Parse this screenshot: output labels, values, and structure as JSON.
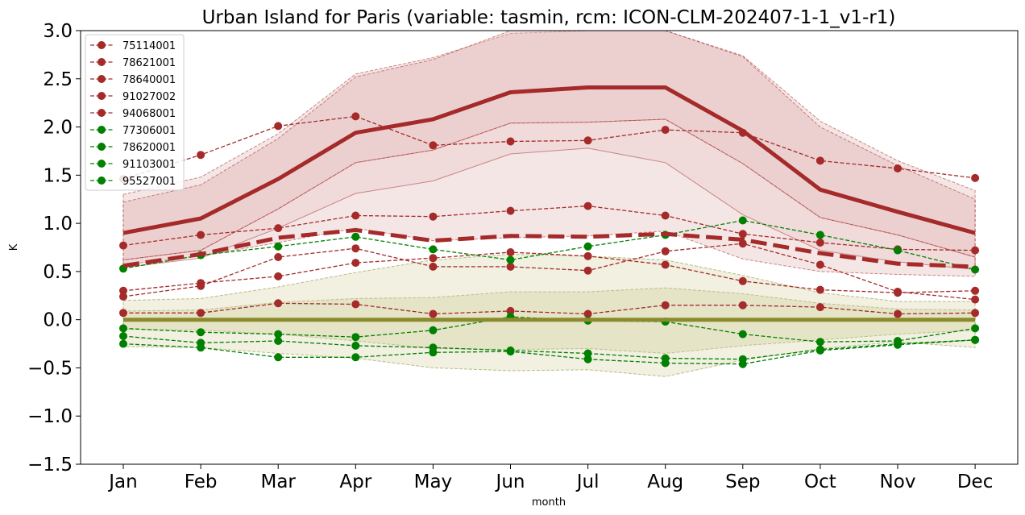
{
  "chart_data": {
    "type": "line",
    "title": "Urban Island for Paris (variable: tasmin, rcm: ICON-CLM-202407-1-1_v1-r1)",
    "xlabel": "month",
    "ylabel": "K",
    "ylim": [
      -1.5,
      3.0
    ],
    "yticks": [
      -1.5,
      -1.0,
      -0.5,
      0.0,
      0.5,
      1.0,
      1.5,
      2.0,
      2.5,
      3.0
    ],
    "ytick_labels": [
      "−1.5",
      "−1.0",
      "−0.5",
      "0.0",
      "0.5",
      "1.0",
      "1.5",
      "2.0",
      "2.5",
      "3.0"
    ],
    "categories": [
      "Jan",
      "Feb",
      "Mar",
      "Apr",
      "May",
      "Jun",
      "Jul",
      "Aug",
      "Sep",
      "Oct",
      "Nov",
      "Dec"
    ],
    "grid": false,
    "legend_position": "top-left",
    "colors": {
      "urban": "#a52a2a",
      "rural": "#008000",
      "rural_band": "#8b8b2e",
      "urban_band_fill": "#e2b6b6",
      "rural_band_fill": "#d8d4a8"
    },
    "series": [
      {
        "name": "75114001",
        "group": "urban",
        "values": [
          0.3,
          0.38,
          0.45,
          0.59,
          0.64,
          0.7,
          0.66,
          0.57,
          0.4,
          0.31,
          0.28,
          0.3
        ]
      },
      {
        "name": "78621001",
        "group": "urban",
        "values": [
          0.07,
          0.07,
          0.17,
          0.16,
          0.06,
          0.09,
          0.06,
          0.15,
          0.15,
          0.13,
          0.06,
          0.07
        ]
      },
      {
        "name": "78640001",
        "group": "urban",
        "values": [
          0.24,
          0.35,
          0.65,
          0.74,
          0.55,
          0.55,
          0.51,
          0.71,
          0.79,
          0.57,
          0.29,
          0.21
        ]
      },
      {
        "name": "91027002",
        "group": "urban",
        "values": [
          0.77,
          0.88,
          0.95,
          1.08,
          1.07,
          1.13,
          1.18,
          1.08,
          0.89,
          0.8,
          0.73,
          0.72
        ]
      },
      {
        "name": "94068001",
        "group": "urban",
        "values": [
          1.46,
          1.71,
          2.01,
          2.11,
          1.81,
          1.85,
          1.86,
          1.97,
          1.94,
          1.65,
          1.57,
          1.47
        ]
      },
      {
        "name": "77306001",
        "group": "rural",
        "values": [
          0.53,
          0.67,
          0.76,
          0.86,
          0.73,
          0.62,
          0.76,
          0.88,
          1.03,
          0.88,
          0.72,
          0.52
        ]
      },
      {
        "name": "78620001",
        "group": "rural",
        "values": [
          -0.09,
          -0.13,
          -0.15,
          -0.18,
          -0.11,
          0.03,
          -0.01,
          -0.02,
          -0.15,
          -0.23,
          -0.22,
          -0.09
        ]
      },
      {
        "name": "91103001",
        "group": "rural",
        "values": [
          -0.17,
          -0.24,
          -0.22,
          -0.27,
          -0.29,
          -0.32,
          -0.35,
          -0.4,
          -0.41,
          -0.31,
          -0.25,
          -0.21
        ]
      },
      {
        "name": "95527001",
        "group": "rural",
        "values": [
          -0.25,
          -0.29,
          -0.39,
          -0.39,
          -0.34,
          -0.33,
          -0.41,
          -0.45,
          -0.46,
          -0.32,
          -0.26,
          -0.21
        ]
      }
    ],
    "urban_mean": [
      0.9,
      1.05,
      1.46,
      1.94,
      2.08,
      2.36,
      2.41,
      2.41,
      1.96,
      1.35,
      1.12,
      0.9
    ],
    "station_mean": [
      0.56,
      0.68,
      0.85,
      0.93,
      0.82,
      0.87,
      0.86,
      0.89,
      0.83,
      0.69,
      0.58,
      0.55
    ],
    "rural_mean": [
      0,
      0,
      0,
      0,
      0,
      0,
      0,
      0,
      0,
      0,
      0,
      0
    ],
    "urban_band_outer": {
      "upper": [
        1.3,
        1.48,
        1.93,
        2.55,
        2.72,
        2.97,
        3.0,
        3.0,
        2.74,
        2.06,
        1.65,
        1.34
      ],
      "lower": [
        0.57,
        0.66,
        0.8,
        0.95,
        0.82,
        0.85,
        0.87,
        0.92,
        0.63,
        0.5,
        0.47,
        0.45
      ]
    },
    "urban_band_inner": {
      "upper": [
        1.22,
        1.4,
        1.88,
        2.52,
        2.7,
        3.0,
        3.0,
        3.0,
        2.73,
        2.0,
        1.6,
        1.25
      ],
      "lower": [
        0.62,
        0.72,
        1.15,
        1.63,
        1.76,
        2.04,
        2.05,
        2.08,
        1.62,
        1.06,
        0.88,
        0.65
      ]
    },
    "urban_band_low": {
      "upper": [
        0.62,
        0.72,
        1.15,
        1.63,
        1.76,
        2.04,
        2.05,
        2.08,
        1.62,
        1.06,
        0.88,
        0.65
      ],
      "lower": [
        0.54,
        0.64,
        0.95,
        1.31,
        1.44,
        1.72,
        1.78,
        1.63,
        1.09,
        0.72,
        0.6,
        0.52
      ]
    },
    "rural_band_outer": {
      "upper": [
        0.2,
        0.22,
        0.34,
        0.49,
        0.62,
        0.68,
        0.66,
        0.62,
        0.46,
        0.28,
        0.19,
        0.19
      ],
      "lower": [
        -0.28,
        -0.29,
        -0.35,
        -0.4,
        -0.5,
        -0.53,
        -0.52,
        -0.59,
        -0.42,
        -0.3,
        -0.23,
        -0.29
      ]
    },
    "rural_band_inner": {
      "upper": [
        0.09,
        0.1,
        0.18,
        0.22,
        0.23,
        0.29,
        0.29,
        0.33,
        0.27,
        0.17,
        0.11,
        0.1
      ],
      "lower": [
        -0.1,
        -0.11,
        -0.15,
        -0.22,
        -0.3,
        -0.31,
        -0.3,
        -0.35,
        -0.27,
        -0.21,
        -0.15,
        -0.11
      ]
    }
  }
}
